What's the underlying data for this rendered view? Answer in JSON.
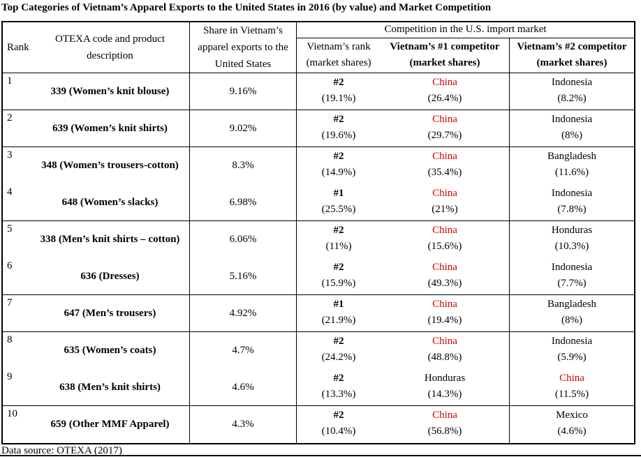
{
  "title": "Top Categories of Vietnam’s Apparel Exports to the United States in 2016 (by value) and Market Competition",
  "footer": "Data source: OTEXA (2017)",
  "colors": {
    "highlight_red": "#d40000",
    "text": "#000000",
    "border": "#000000",
    "background": "#ffffff"
  },
  "header": {
    "rank": "Rank",
    "product_lines": [
      "OTEXA code and product",
      "description"
    ],
    "share_lines": [
      "Share in Vietnam’s",
      "apparel exports to the",
      "United States"
    ],
    "competition_group": "Competition in the U.S. import market",
    "vn_rank_lines": [
      "Vietnam’s rank",
      "(market shares)"
    ],
    "comp1_lines": [
      "Vietnam’s #1 competitor",
      "(market shares)"
    ],
    "comp2_lines": [
      "Vietnam’s #2 competitor",
      "(market shares)"
    ]
  },
  "rows": [
    {
      "rank": "1",
      "product": "339 (Women’s knit blouse)",
      "share": "9.16%",
      "vn_rank": "#2",
      "vn_share": "(19.1%)",
      "c1": "China",
      "c1_share": "(26.4%)",
      "c1_red": true,
      "c2": "Indonesia",
      "c2_share": "(8.2%)",
      "c2_red": false,
      "divider_below": true
    },
    {
      "rank": "2",
      "product": "639 (Women’s knit shirts)",
      "share": "9.02%",
      "vn_rank": "#2",
      "vn_share": "(19.6%)",
      "c1": "China",
      "c1_share": "(29.7%)",
      "c1_red": true,
      "c2": "Indonesia",
      "c2_share": "(8%)",
      "c2_red": false,
      "divider_below": true
    },
    {
      "rank": "3",
      "product": "348 (Women’s trousers-cotton)",
      "share": "8.3%",
      "vn_rank": "#2",
      "vn_share": "(14.9%)",
      "c1": "China",
      "c1_share": "(35.4%)",
      "c1_red": true,
      "c2": "Bangladesh",
      "c2_share": "(11.6%)",
      "c2_red": false,
      "divider_below": false
    },
    {
      "rank": "4",
      "product": "648 (Women’s slacks)",
      "share": "6.98%",
      "vn_rank": "#1",
      "vn_share": "(25.5%)",
      "c1": "China",
      "c1_share": "(21%)",
      "c1_red": true,
      "c2": "Indonesia",
      "c2_share": "(7.8%)",
      "c2_red": false,
      "divider_below": true
    },
    {
      "rank": "5",
      "product": "338 (Men’s knit shirts – cotton)",
      "share": "6.06%",
      "vn_rank": "#2",
      "vn_share": "(11%)",
      "c1": "China",
      "c1_share": "(15.6%)",
      "c1_red": true,
      "c2": "Honduras",
      "c2_share": "(10.3%)",
      "c2_red": false,
      "divider_below": false
    },
    {
      "rank": "6",
      "product": "636 (Dresses)",
      "share": "5.16%",
      "vn_rank": "#2",
      "vn_share": "(15.9%)",
      "c1": "China",
      "c1_share": "(49.3%)",
      "c1_red": true,
      "c2": "Indonesia",
      "c2_share": "(7.7%)",
      "c2_red": false,
      "divider_below": true
    },
    {
      "rank": "7",
      "product": "647 (Men’s trousers)",
      "share": "4.92%",
      "vn_rank": "#1",
      "vn_share": "(21.9%)",
      "c1": "China",
      "c1_share": "(19.4%)",
      "c1_red": true,
      "c2": "Bangladesh",
      "c2_share": "(8%)",
      "c2_red": false,
      "divider_below": true
    },
    {
      "rank": "8",
      "product": "635 (Women’s coats)",
      "share": "4.7%",
      "vn_rank": "#2",
      "vn_share": "(24.2%)",
      "c1": "China",
      "c1_share": "(48.8%)",
      "c1_red": true,
      "c2": "Indonesia",
      "c2_share": "(5.9%)",
      "c2_red": false,
      "divider_below": false
    },
    {
      "rank": "9",
      "product": "638 (Men’s knit shirts)",
      "share": "4.6%",
      "vn_rank": "#2",
      "vn_share": "(13.3%)",
      "c1": "Honduras",
      "c1_share": "(14.3%)",
      "c1_red": false,
      "c2": "China",
      "c2_share": "(11.5%)",
      "c2_red": true,
      "divider_below": true
    },
    {
      "rank": "10",
      "product": "659 (Other MMF Apparel)",
      "share": "4.3%",
      "vn_rank": "#2",
      "vn_share": "(10.4%)",
      "c1": "China",
      "c1_share": "(56.8%)",
      "c1_red": true,
      "c2": "Mexico",
      "c2_share": "(4.6%)",
      "c2_red": false,
      "divider_below": false
    }
  ]
}
